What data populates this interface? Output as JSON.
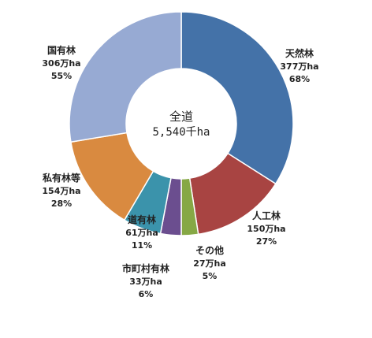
{
  "chart_data": {
    "type": "pie",
    "variant": "donut",
    "center": {
      "title": "全道",
      "value": "5,540千ha"
    },
    "slices": [
      {
        "name": "天然林",
        "amount": "377万ha",
        "percent_label": "68%",
        "value": 377,
        "color": "#4472a8"
      },
      {
        "name": "人工林",
        "amount": "150万ha",
        "percent_label": "27%",
        "value": 150,
        "color": "#a84442"
      },
      {
        "name": "その他",
        "amount": "27万ha",
        "percent_label": "5%",
        "value": 27,
        "color": "#86a845"
      },
      {
        "name": "市町村有林",
        "amount": "33万ha",
        "percent_label": "6%",
        "value": 33,
        "color": "#6b4e8f"
      },
      {
        "name": "道有林",
        "amount": "61万ha",
        "percent_label": "11%",
        "value": 61,
        "color": "#3b93ab"
      },
      {
        "name": "私有林等",
        "amount": "154万ha",
        "percent_label": "28%",
        "value": 154,
        "color": "#d98a40"
      },
      {
        "name": "国有林",
        "amount": "306万ha",
        "percent_label": "55%",
        "value": 306,
        "color": "#97aad3"
      }
    ]
  }
}
